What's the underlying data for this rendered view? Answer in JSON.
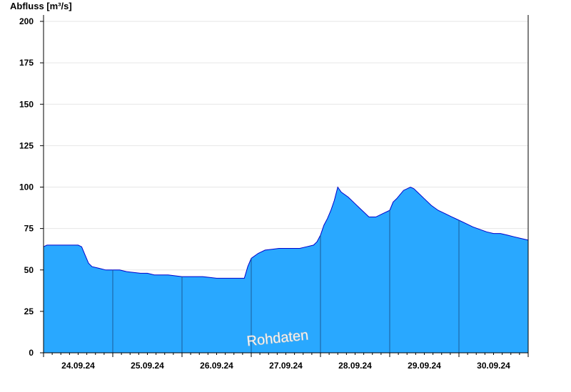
{
  "chart_data": {
    "type": "area",
    "ylabel": "Abfluss [m³/s]",
    "xlabel": "",
    "ylim": [
      0,
      200
    ],
    "y_ticks": [
      0,
      25,
      50,
      75,
      100,
      125,
      150,
      175,
      200
    ],
    "x_range_days": [
      0,
      7
    ],
    "day_labels": [
      "24.09.24",
      "25.09.24",
      "26.09.24",
      "27.09.24",
      "28.09.24",
      "29.09.24",
      "30.09.24"
    ],
    "grid": true,
    "legend": "none",
    "watermark": "Rohdaten",
    "series": [
      {
        "fill_color": "#29a8ff",
        "line_color": "#0000cc",
        "x": [
          0,
          0.05,
          0.15,
          0.25,
          0.5,
          0.55,
          0.6,
          0.65,
          0.7,
          0.8,
          0.9,
          1.0,
          1.1,
          1.2,
          1.4,
          1.5,
          1.6,
          1.8,
          2.0,
          2.1,
          2.3,
          2.5,
          2.8,
          2.9,
          2.95,
          3.0,
          3.1,
          3.2,
          3.4,
          3.6,
          3.7,
          3.8,
          3.9,
          3.95,
          4.0,
          4.05,
          4.1,
          4.15,
          4.2,
          4.25,
          4.3,
          4.4,
          4.5,
          4.6,
          4.7,
          4.8,
          4.9,
          5.0,
          5.05,
          5.1,
          5.2,
          5.3,
          5.35,
          5.4,
          5.5,
          5.6,
          5.7,
          5.8,
          5.9,
          6.0,
          6.1,
          6.2,
          6.4,
          6.5,
          6.6,
          6.7,
          6.8,
          6.9,
          7.0
        ],
        "values": [
          64,
          65,
          65,
          65,
          65,
          64,
          59,
          54,
          52,
          51,
          50,
          50,
          50,
          49,
          48,
          48,
          47,
          47,
          46,
          46,
          46,
          45,
          45,
          45,
          52,
          57,
          60,
          62,
          63,
          63,
          63,
          64,
          65,
          67,
          71,
          77,
          81,
          86,
          92,
          100,
          97,
          94,
          90,
          86,
          82,
          82,
          84,
          86,
          91,
          93,
          98,
          100,
          99,
          97,
          93,
          89,
          86,
          84,
          82,
          80,
          78,
          76,
          73,
          72,
          72,
          71,
          70,
          69,
          68
        ]
      }
    ]
  }
}
